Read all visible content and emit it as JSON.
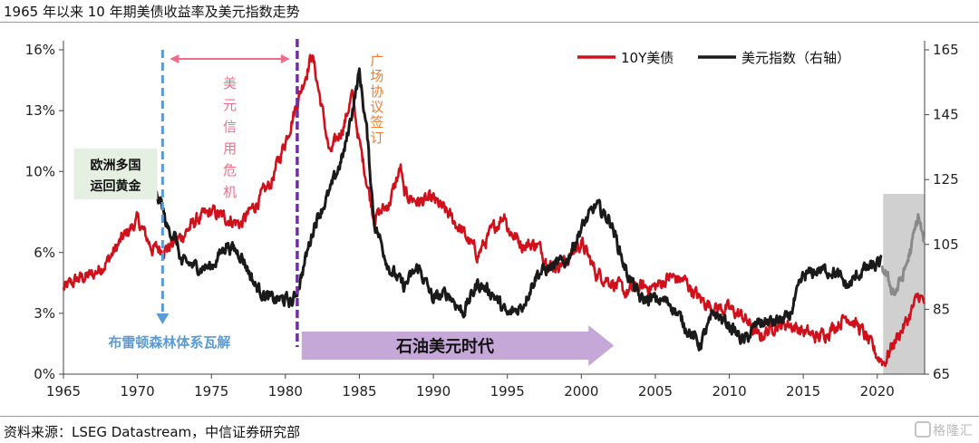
{
  "title": "1965 年以来 10 年期美债收益率及美元指数走势",
  "source": "资料来源：LSEG Datastream，中信证券研究部",
  "watermark": "格隆汇",
  "chart_data": {
    "type": "line",
    "x_range": [
      1965,
      2023.2
    ],
    "x_ticks": [
      "1965",
      "1970",
      "1975",
      "1980",
      "1985",
      "1990",
      "1995",
      "2000",
      "2005",
      "2010",
      "2015",
      "2020"
    ],
    "y_left": {
      "ticks": [
        "0%",
        "3%",
        "6%",
        "10%",
        "13%",
        "16%"
      ],
      "range": [
        0,
        16
      ],
      "unit": "%"
    },
    "y_right": {
      "ticks": [
        "65",
        "85",
        "105",
        "125",
        "145",
        "165"
      ],
      "range": [
        65,
        165
      ]
    },
    "grid": false,
    "legend_position": "top-right",
    "colors": {
      "us10y": "#d0111b",
      "dxy": "#1a1a1a",
      "dxy_highlight": "#8a8a8a",
      "annot_blue": "#5b9bd5",
      "annot_pink": "#f06c8a",
      "annot_purple": "#7030a0",
      "annot_orange": "#ed7d31",
      "arrow_fill": "#c5a7d8",
      "shade": "#c8c8c8"
    },
    "series": [
      {
        "name": "10Y美债",
        "axis": "left",
        "points": [
          [
            1965,
            4.2
          ],
          [
            1966,
            4.7
          ],
          [
            1967,
            4.9
          ],
          [
            1968,
            5.6
          ],
          [
            1969,
            6.7
          ],
          [
            1970,
            7.6
          ],
          [
            1971,
            6.2
          ],
          [
            1972,
            6.2
          ],
          [
            1973,
            6.8
          ],
          [
            1974,
            7.6
          ],
          [
            1975,
            8.0
          ],
          [
            1976,
            7.7
          ],
          [
            1977,
            7.4
          ],
          [
            1978,
            8.4
          ],
          [
            1979,
            9.4
          ],
          [
            1980,
            11.5
          ],
          [
            1981,
            13.9
          ],
          [
            1981.8,
            15.8
          ],
          [
            1982.5,
            13.0
          ],
          [
            1983,
            10.8
          ],
          [
            1984,
            12.4
          ],
          [
            1984.5,
            13.8
          ],
          [
            1985,
            11.4
          ],
          [
            1986,
            7.7
          ],
          [
            1987,
            8.4
          ],
          [
            1987.8,
            10.2
          ],
          [
            1988,
            8.9
          ],
          [
            1989,
            8.5
          ],
          [
            1990,
            8.6
          ],
          [
            1991,
            7.9
          ],
          [
            1992,
            7.0
          ],
          [
            1993,
            5.9
          ],
          [
            1994,
            7.1
          ],
          [
            1994.9,
            8.0
          ],
          [
            1995,
            7.2
          ],
          [
            1996,
            6.4
          ],
          [
            1997,
            6.4
          ],
          [
            1998,
            5.3
          ],
          [
            1999,
            5.6
          ],
          [
            2000,
            6.5
          ],
          [
            2001,
            5.0
          ],
          [
            2002,
            4.6
          ],
          [
            2003,
            4.0
          ],
          [
            2004,
            4.3
          ],
          [
            2005,
            4.3
          ],
          [
            2006,
            4.8
          ],
          [
            2007,
            4.6
          ],
          [
            2008,
            3.7
          ],
          [
            2009,
            3.3
          ],
          [
            2010,
            3.2
          ],
          [
            2011,
            2.8
          ],
          [
            2012,
            1.8
          ],
          [
            2013,
            2.4
          ],
          [
            2014,
            2.5
          ],
          [
            2015,
            2.1
          ],
          [
            2016,
            1.8
          ],
          [
            2017,
            2.3
          ],
          [
            2018,
            2.9
          ],
          [
            2019,
            2.1
          ],
          [
            2020,
            0.9
          ],
          [
            2020.5,
            0.6
          ],
          [
            2021,
            1.4
          ],
          [
            2022,
            2.6
          ],
          [
            2022.8,
            3.9
          ],
          [
            2023.2,
            3.5
          ]
        ]
      },
      {
        "name": "美元指数（右轴）",
        "axis": "right",
        "points": [
          [
            1971,
            120.5
          ],
          [
            1971.6,
            118
          ],
          [
            1972,
            110
          ],
          [
            1972.5,
            108
          ],
          [
            1973,
            99
          ],
          [
            1973.5,
            99
          ],
          [
            1974,
            98
          ],
          [
            1975,
            98
          ],
          [
            1976,
            105
          ],
          [
            1977,
            102
          ],
          [
            1978,
            92
          ],
          [
            1979,
            88
          ],
          [
            1980,
            88
          ],
          [
            1980.5,
            87
          ],
          [
            1981,
            94
          ],
          [
            1982,
            112
          ],
          [
            1983,
            121
          ],
          [
            1984,
            134
          ],
          [
            1985,
            158
          ],
          [
            1985.5,
            140
          ],
          [
            1986,
            112
          ],
          [
            1987,
            98
          ],
          [
            1988,
            92
          ],
          [
            1989,
            98
          ],
          [
            1990,
            88
          ],
          [
            1991,
            90
          ],
          [
            1992,
            84
          ],
          [
            1993,
            93
          ],
          [
            1994,
            90
          ],
          [
            1995,
            83
          ],
          [
            1996,
            86
          ],
          [
            1997,
            96
          ],
          [
            1998,
            98
          ],
          [
            1999,
            100
          ],
          [
            2000,
            110
          ],
          [
            2001,
            117
          ],
          [
            2002,
            112
          ],
          [
            2003,
            97
          ],
          [
            2004,
            88
          ],
          [
            2005,
            88
          ],
          [
            2006,
            87
          ],
          [
            2007,
            80
          ],
          [
            2008,
            74
          ],
          [
            2009,
            84
          ],
          [
            2010,
            80
          ],
          [
            2011,
            75
          ],
          [
            2012,
            81
          ],
          [
            2013,
            81
          ],
          [
            2014,
            82
          ],
          [
            2015,
            95
          ],
          [
            2016,
            97
          ],
          [
            2017,
            97
          ],
          [
            2018,
            92
          ],
          [
            2019,
            97
          ],
          [
            2020.3,
            99
          ]
        ]
      },
      {
        "name": "",
        "axis": "right",
        "highlight": true,
        "points": [
          [
            2020.3,
            99
          ],
          [
            2020.8,
            93
          ],
          [
            2021.2,
            90
          ],
          [
            2021.8,
            96
          ],
          [
            2022.3,
            104
          ],
          [
            2022.8,
            114
          ],
          [
            2023.2,
            104
          ]
        ]
      }
    ],
    "annotations": [
      {
        "type": "vline",
        "x": 1971.7,
        "label": "布雷顿森林体系瓦解",
        "color": "blue"
      },
      {
        "type": "vline",
        "x": 1980.8,
        "color": "purple"
      },
      {
        "type": "range",
        "from": 1971.7,
        "to": 1980.8,
        "label": "美元信用危机",
        "color": "pink"
      },
      {
        "type": "text",
        "x": 1985.7,
        "label": "广场协议签订",
        "color": "orange"
      },
      {
        "type": "box",
        "x": 1965.4,
        "label_lines": [
          "欧洲多国",
          "运回黄金"
        ]
      },
      {
        "type": "arrow",
        "from": 1981.1,
        "to": 2002.2,
        "label": "石油美元时代"
      },
      {
        "type": "shade",
        "from": 2020.4,
        "to": 2023.2
      }
    ]
  }
}
